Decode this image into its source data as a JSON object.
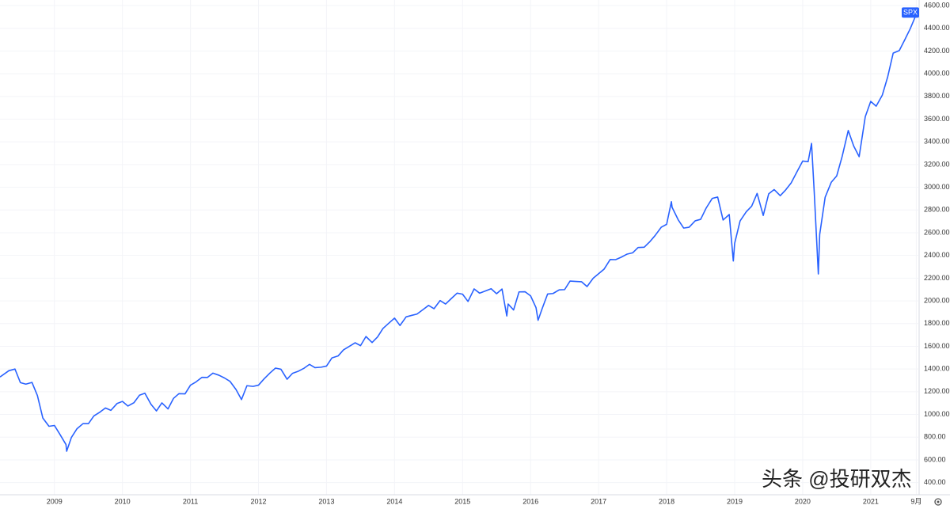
{
  "chart_data": {
    "type": "line",
    "annotations": [
      "头条 @投研双杰"
    ],
    "x": [
      2008.2,
      2008.33,
      2008.42,
      2008.5,
      2008.58,
      2008.67,
      2008.75,
      2008.83,
      2008.92,
      2009.0,
      2009.08,
      2009.17,
      2009.18,
      2009.25,
      2009.33,
      2009.42,
      2009.5,
      2009.58,
      2009.67,
      2009.75,
      2009.83,
      2009.92,
      2010.0,
      2010.08,
      2010.17,
      2010.25,
      2010.33,
      2010.42,
      2010.5,
      2010.58,
      2010.67,
      2010.75,
      2010.83,
      2010.92,
      2011.0,
      2011.08,
      2011.17,
      2011.25,
      2011.33,
      2011.42,
      2011.5,
      2011.58,
      2011.67,
      2011.75,
      2011.83,
      2011.92,
      2012.0,
      2012.08,
      2012.17,
      2012.25,
      2012.33,
      2012.42,
      2012.5,
      2012.58,
      2012.67,
      2012.75,
      2012.83,
      2012.92,
      2013.0,
      2013.08,
      2013.17,
      2013.25,
      2013.33,
      2013.42,
      2013.5,
      2013.58,
      2013.67,
      2013.75,
      2013.83,
      2013.92,
      2014.0,
      2014.08,
      2014.17,
      2014.25,
      2014.33,
      2014.42,
      2014.5,
      2014.58,
      2014.67,
      2014.75,
      2014.83,
      2014.92,
      2015.0,
      2015.08,
      2015.17,
      2015.25,
      2015.33,
      2015.42,
      2015.5,
      2015.58,
      2015.65,
      2015.67,
      2015.75,
      2015.83,
      2015.92,
      2016.0,
      2016.08,
      2016.11,
      2016.17,
      2016.25,
      2016.33,
      2016.42,
      2016.5,
      2016.58,
      2016.67,
      2016.75,
      2016.83,
      2016.92,
      2017.0,
      2017.08,
      2017.17,
      2017.25,
      2017.33,
      2017.42,
      2017.5,
      2017.58,
      2017.67,
      2017.75,
      2017.83,
      2017.92,
      2018.0,
      2018.07,
      2018.08,
      2018.17,
      2018.25,
      2018.33,
      2018.42,
      2018.5,
      2018.58,
      2018.67,
      2018.75,
      2018.83,
      2018.92,
      2018.98,
      2019.0,
      2019.08,
      2019.17,
      2019.25,
      2019.33,
      2019.42,
      2019.5,
      2019.58,
      2019.67,
      2019.75,
      2019.83,
      2019.92,
      2020.0,
      2020.08,
      2020.13,
      2020.17,
      2020.23,
      2020.25,
      2020.33,
      2020.42,
      2020.5,
      2020.58,
      2020.67,
      2020.75,
      2020.83,
      2020.92,
      2021.0,
      2021.08,
      2021.17,
      2021.25,
      2021.33,
      2021.42,
      2021.5,
      2021.58,
      2021.67,
      2021.68
    ],
    "series": [
      {
        "name": "SPX",
        "color": "#2962ff",
        "values": [
          1330,
          1385,
          1400,
          1280,
          1267,
          1282,
          1166,
          968,
          896,
          903,
          826,
          735,
          676,
          798,
          873,
          919,
          919,
          987,
          1021,
          1057,
          1036,
          1096,
          1115,
          1074,
          1104,
          1169,
          1187,
          1089,
          1031,
          1102,
          1049,
          1141,
          1183,
          1181,
          1258,
          1286,
          1327,
          1326,
          1364,
          1345,
          1321,
          1292,
          1219,
          1131,
          1253,
          1247,
          1258,
          1312,
          1366,
          1408,
          1398,
          1310,
          1362,
          1379,
          1407,
          1441,
          1412,
          1416,
          1426,
          1498,
          1515,
          1569,
          1598,
          1631,
          1606,
          1686,
          1633,
          1682,
          1757,
          1806,
          1848,
          1783,
          1859,
          1872,
          1884,
          1924,
          1960,
          1931,
          2003,
          1972,
          2018,
          2068,
          2059,
          1995,
          2105,
          2068,
          2086,
          2107,
          2063,
          2104,
          1867,
          1972,
          1920,
          2079,
          2080,
          2044,
          1940,
          1829,
          1932,
          2060,
          2065,
          2097,
          2099,
          2174,
          2171,
          2168,
          2126,
          2199,
          2239,
          2279,
          2364,
          2363,
          2384,
          2412,
          2423,
          2470,
          2472,
          2519,
          2575,
          2648,
          2674,
          2873,
          2824,
          2714,
          2641,
          2648,
          2705,
          2718,
          2816,
          2902,
          2914,
          2712,
          2760,
          2351,
          2507,
          2704,
          2784,
          2834,
          2946,
          2752,
          2942,
          2980,
          2926,
          2977,
          3038,
          3141,
          3231,
          3226,
          3386,
          2954,
          2237,
          2585,
          2912,
          3044,
          3100,
          3271,
          3500,
          3363,
          3270,
          3622,
          3756,
          3714,
          3811,
          3973,
          4181,
          4204,
          4298,
          4395,
          4523,
          4535
        ]
      }
    ],
    "xlim": [
      2008.2,
      2021.7
    ],
    "xticks": [
      2009,
      2010,
      2011,
      2012,
      2013,
      2014,
      2015,
      2016,
      2017,
      2018,
      2019,
      2020,
      2021,
      {
        "value": 2021.67,
        "label": "9月"
      }
    ],
    "ylim": [
      293,
      4649
    ],
    "yticks": [
      {
        "value": 400,
        "label": "400.00"
      },
      {
        "value": 600,
        "label": "600.00"
      },
      {
        "value": 800,
        "label": "800.00"
      },
      {
        "value": 1000,
        "label": "1000.00"
      },
      {
        "value": 1200,
        "label": "1200.00"
      },
      {
        "value": 1400,
        "label": "1400.00"
      },
      {
        "value": 1600,
        "label": "1600.00"
      },
      {
        "value": 1800,
        "label": "1800.00"
      },
      {
        "value": 2000,
        "label": "2000.00"
      },
      {
        "value": 2200,
        "label": "2200.00"
      },
      {
        "value": 2400,
        "label": "2400.00"
      },
      {
        "value": 2600,
        "label": "2600.00"
      },
      {
        "value": 2800,
        "label": "2800.00"
      },
      {
        "value": 3000,
        "label": "3000.00"
      },
      {
        "value": 3200,
        "label": "3200.00"
      },
      {
        "value": 3400,
        "label": "3400.00"
      },
      {
        "value": 3600,
        "label": "3600.00"
      },
      {
        "value": 3800,
        "label": "3800.00"
      },
      {
        "value": 4000,
        "label": "4000.00"
      },
      {
        "value": 4200,
        "label": "4200.00"
      },
      {
        "value": 4400,
        "label": "4400.00"
      },
      {
        "value": 4600,
        "label": "4600.00"
      }
    ],
    "grid": true
  }
}
